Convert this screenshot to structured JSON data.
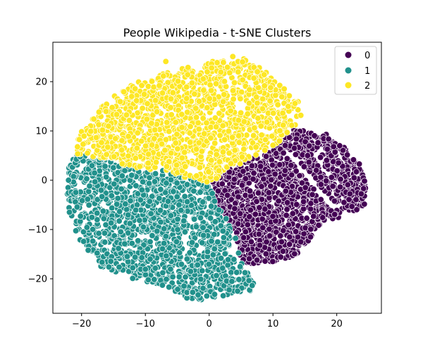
{
  "chart_data": {
    "type": "scatter",
    "title": "People Wikipedia - t-SNE Clusters",
    "xlabel": "",
    "ylabel": "",
    "xlim": [
      -24.5,
      27.0
    ],
    "ylim": [
      -27.0,
      28.0
    ],
    "x_ticks": [
      -20,
      -10,
      0,
      10,
      20
    ],
    "y_ticks": [
      -20,
      -10,
      0,
      10,
      20
    ],
    "x_tick_labels": [
      "−20",
      "−10",
      "0",
      "10",
      "20"
    ],
    "y_tick_labels": [
      "−20",
      "−10",
      "0",
      "10",
      "20"
    ],
    "grid": false,
    "legend_position": "top-right",
    "series": [
      {
        "name": "0",
        "color": "#440154",
        "region": [
          [
            0.2,
            -0.5
          ],
          [
            3.5,
            2.5
          ],
          [
            10,
            6.5
          ],
          [
            13,
            10
          ],
          [
            15,
            14
          ],
          [
            13.5,
            10.5
          ],
          [
            16,
            9.6
          ],
          [
            18.5,
            9.3
          ],
          [
            19,
            8
          ],
          [
            21.5,
            7
          ],
          [
            22.3,
            4.5
          ],
          [
            23.5,
            3.5
          ],
          [
            24.6,
            0
          ],
          [
            24.5,
            -5
          ],
          [
            22,
            -6.8
          ],
          [
            17.5,
            -9
          ],
          [
            14.5,
            -14
          ],
          [
            13.5,
            -15.3
          ],
          [
            10,
            -16.5
          ],
          [
            7,
            -17
          ],
          [
            5,
            -16.5
          ],
          [
            4,
            -11
          ],
          [
            2.6,
            -7.5
          ],
          [
            1,
            -4.5
          ]
        ]
      },
      {
        "name": "1",
        "color": "#21918c",
        "region": [
          [
            -21,
            5.4
          ],
          [
            -16,
            4
          ],
          [
            -10,
            2
          ],
          [
            -7,
            2.2
          ],
          [
            -4,
            0.6
          ],
          [
            0.2,
            -0.5
          ],
          [
            1,
            -4.5
          ],
          [
            2.6,
            -7.5
          ],
          [
            4,
            -11
          ],
          [
            5,
            -16.5
          ],
          [
            7,
            -21
          ],
          [
            6.5,
            -22.5
          ],
          [
            4,
            -22.8
          ],
          [
            2,
            -23.6
          ],
          [
            -1,
            -24.3
          ],
          [
            -4,
            -23.8
          ],
          [
            -7,
            -21.5
          ],
          [
            -11,
            -20.5
          ],
          [
            -14,
            -19
          ],
          [
            -17,
            -17.5
          ],
          [
            -19,
            -15
          ],
          [
            -20.5,
            -12
          ],
          [
            -21.5,
            -9
          ],
          [
            -22.2,
            -5
          ],
          [
            -22.4,
            -1
          ],
          [
            -22,
            2.5
          ]
        ]
      },
      {
        "name": "2",
        "color": "#fde725",
        "region": [
          [
            -21,
            5.4
          ],
          [
            -20.5,
            9
          ],
          [
            -18.5,
            12.5
          ],
          [
            -16.5,
            16
          ],
          [
            -13,
            19
          ],
          [
            -9,
            21
          ],
          [
            -5,
            22.5
          ],
          [
            0,
            24
          ],
          [
            3,
            25.4
          ],
          [
            6,
            24.7
          ],
          [
            9,
            22
          ],
          [
            11,
            19.5
          ],
          [
            13,
            17
          ],
          [
            15,
            15
          ],
          [
            15,
            14
          ],
          [
            13,
            10
          ],
          [
            10,
            6.5
          ],
          [
            3.5,
            2.5
          ],
          [
            0.2,
            -0.5
          ],
          [
            -4,
            0.6
          ],
          [
            -7,
            2.2
          ],
          [
            -10,
            2
          ],
          [
            -16,
            4
          ]
        ]
      }
    ],
    "outlier_points": [
      {
        "series": "2",
        "x": -6.8,
        "y": 24.1
      }
    ]
  },
  "legend": {
    "items": [
      {
        "label": "0",
        "color": "#440154"
      },
      {
        "label": "1",
        "color": "#21918c"
      },
      {
        "label": "2",
        "color": "#fde725"
      }
    ]
  }
}
